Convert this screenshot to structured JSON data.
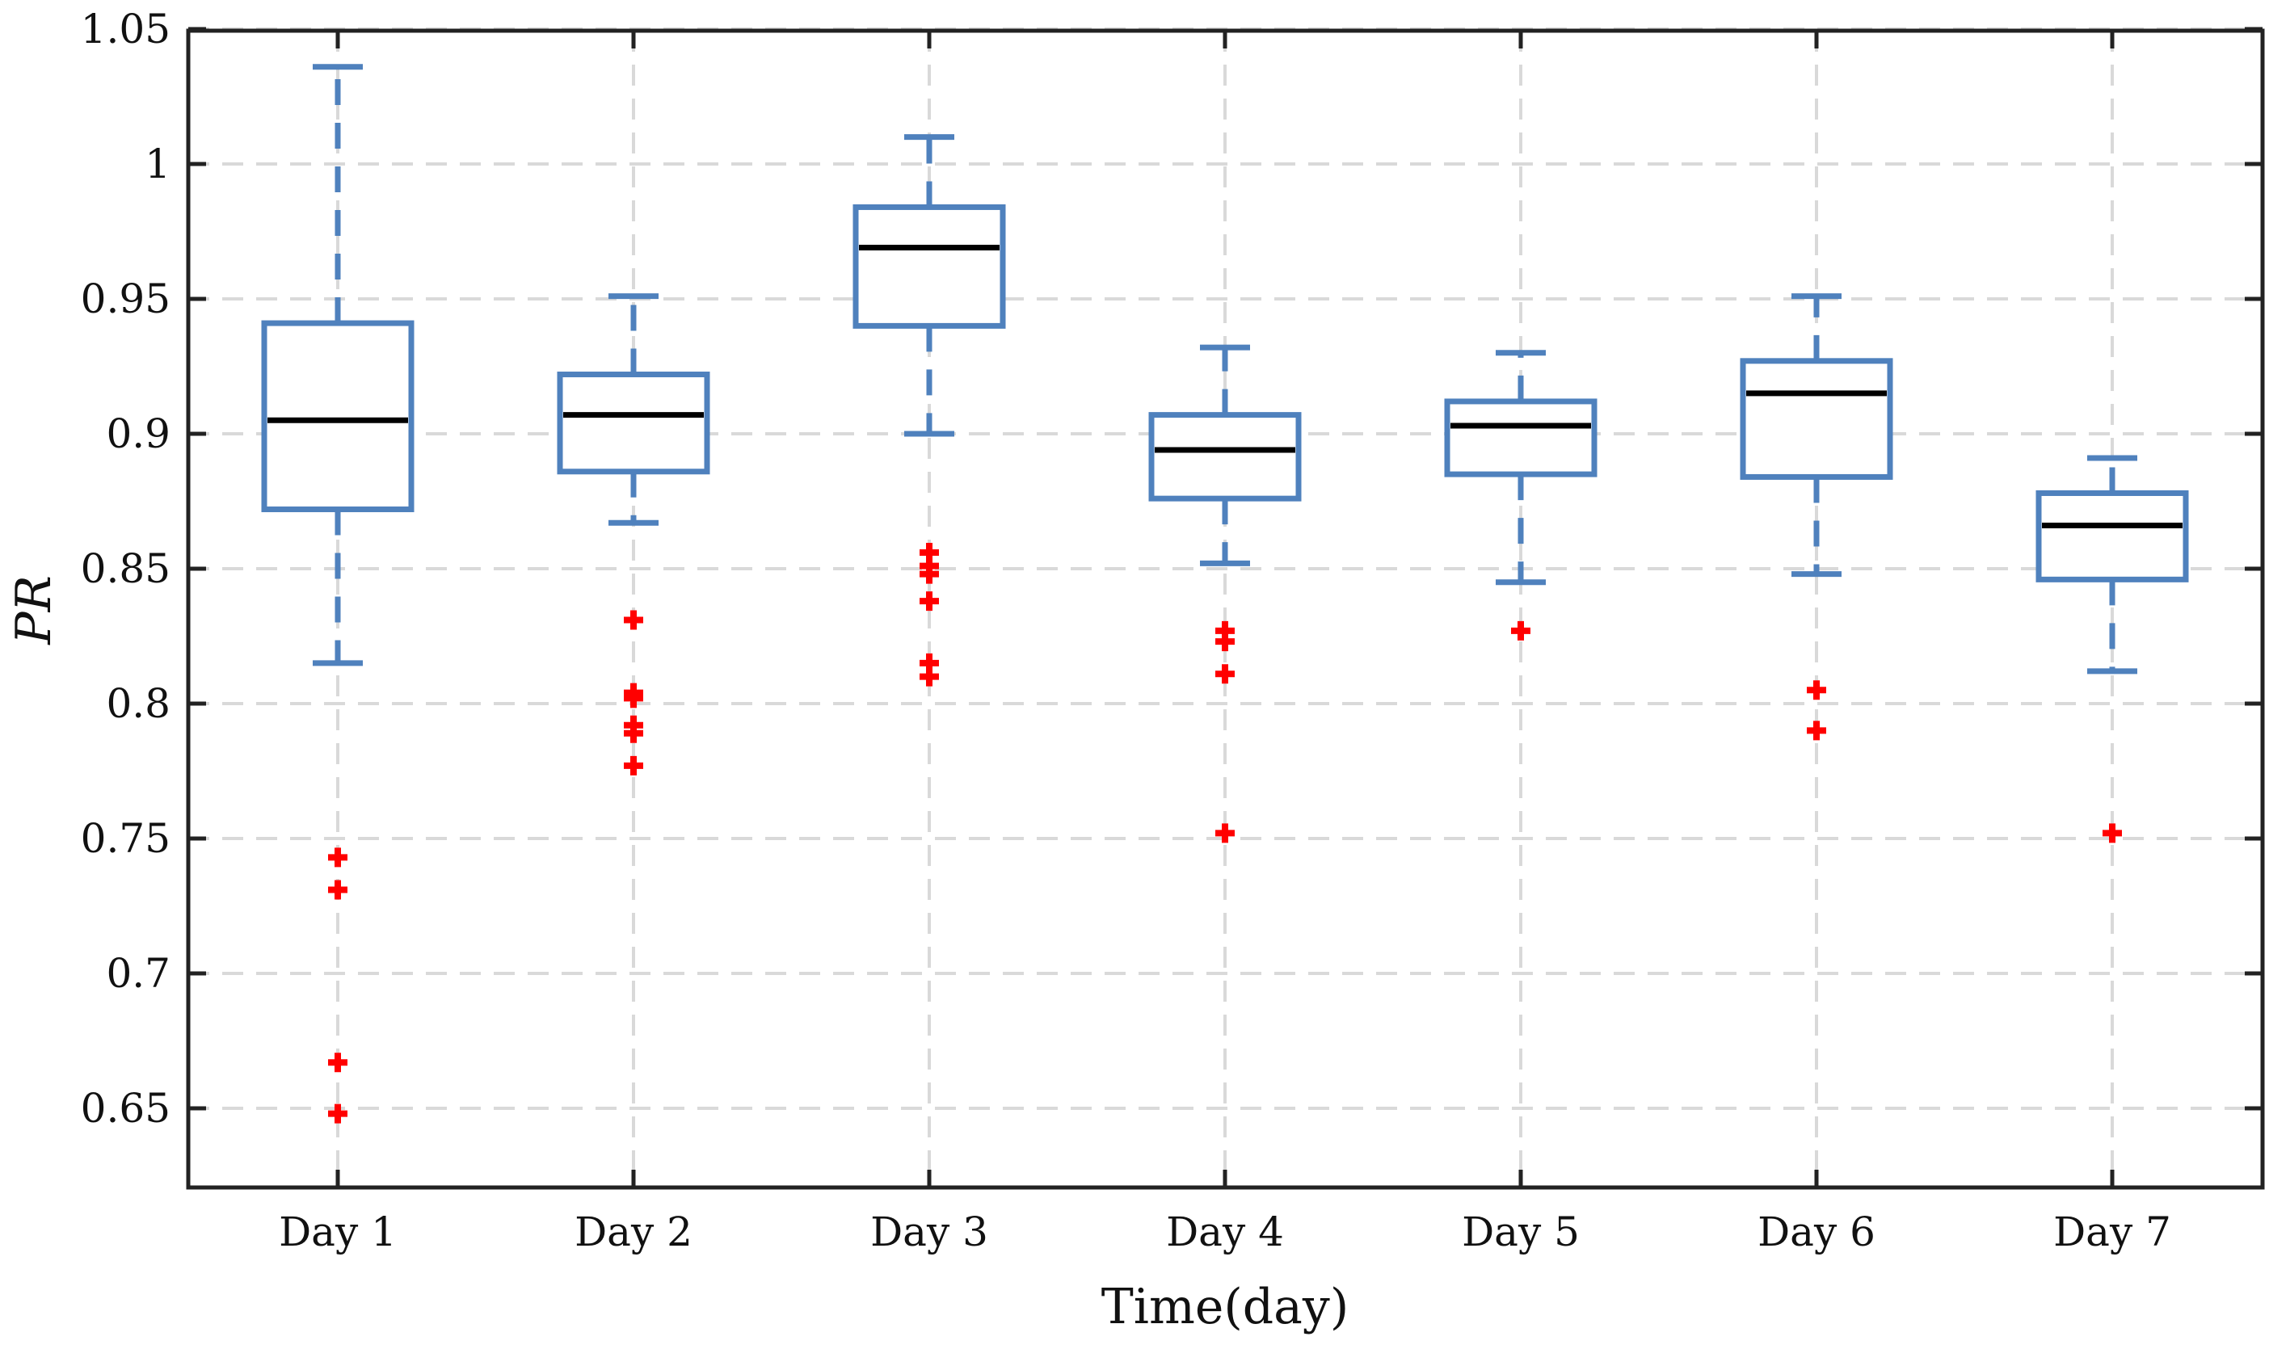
{
  "chart_data": {
    "type": "boxplot",
    "title": "",
    "xlabel": "Time(day)",
    "ylabel": "PR",
    "ylim": [
      0.62,
      1.05
    ],
    "yticks": [
      0.65,
      0.7,
      0.75,
      0.8,
      0.85,
      0.9,
      0.95,
      1,
      1.05
    ],
    "ytick_labels": [
      "0.65",
      "0.7",
      "0.75",
      "0.8",
      "0.85",
      "0.9",
      "0.95",
      "1",
      "1.05"
    ],
    "grid": true,
    "categories": [
      "Day 1",
      "Day 2",
      "Day 3",
      "Day 4",
      "Day 5",
      "Day 6",
      "Day 7"
    ],
    "boxes": [
      {
        "category": "Day 1",
        "whisker_low": 0.815,
        "q1": 0.872,
        "median": 0.905,
        "q3": 0.941,
        "whisker_high": 1.036,
        "outliers": [
          0.743,
          0.731,
          0.667,
          0.648
        ]
      },
      {
        "category": "Day 2",
        "whisker_low": 0.867,
        "q1": 0.886,
        "median": 0.907,
        "q3": 0.922,
        "whisker_high": 0.951,
        "outliers": [
          0.831,
          0.804,
          0.802,
          0.792,
          0.789,
          0.777
        ]
      },
      {
        "category": "Day 3",
        "whisker_low": 0.9,
        "q1": 0.94,
        "median": 0.969,
        "q3": 0.984,
        "whisker_high": 1.01,
        "outliers": [
          0.856,
          0.851,
          0.848,
          0.838,
          0.815,
          0.81
        ]
      },
      {
        "category": "Day 4",
        "whisker_low": 0.852,
        "q1": 0.876,
        "median": 0.894,
        "q3": 0.907,
        "whisker_high": 0.932,
        "outliers": [
          0.827,
          0.823,
          0.811,
          0.752
        ]
      },
      {
        "category": "Day 5",
        "whisker_low": 0.845,
        "q1": 0.885,
        "median": 0.903,
        "q3": 0.912,
        "whisker_high": 0.93,
        "outliers": [
          0.827
        ]
      },
      {
        "category": "Day 6",
        "whisker_low": 0.848,
        "q1": 0.884,
        "median": 0.915,
        "q3": 0.927,
        "whisker_high": 0.951,
        "outliers": [
          0.805,
          0.79
        ]
      },
      {
        "category": "Day 7",
        "whisker_low": 0.812,
        "q1": 0.846,
        "median": 0.866,
        "q3": 0.878,
        "whisker_high": 0.891,
        "outliers": [
          0.752
        ]
      }
    ],
    "colors": {
      "box": "#4f81bd",
      "median": "#000000",
      "outlier": "#ff0000",
      "grid": "#d9d9d9",
      "axis": "#222222"
    }
  }
}
